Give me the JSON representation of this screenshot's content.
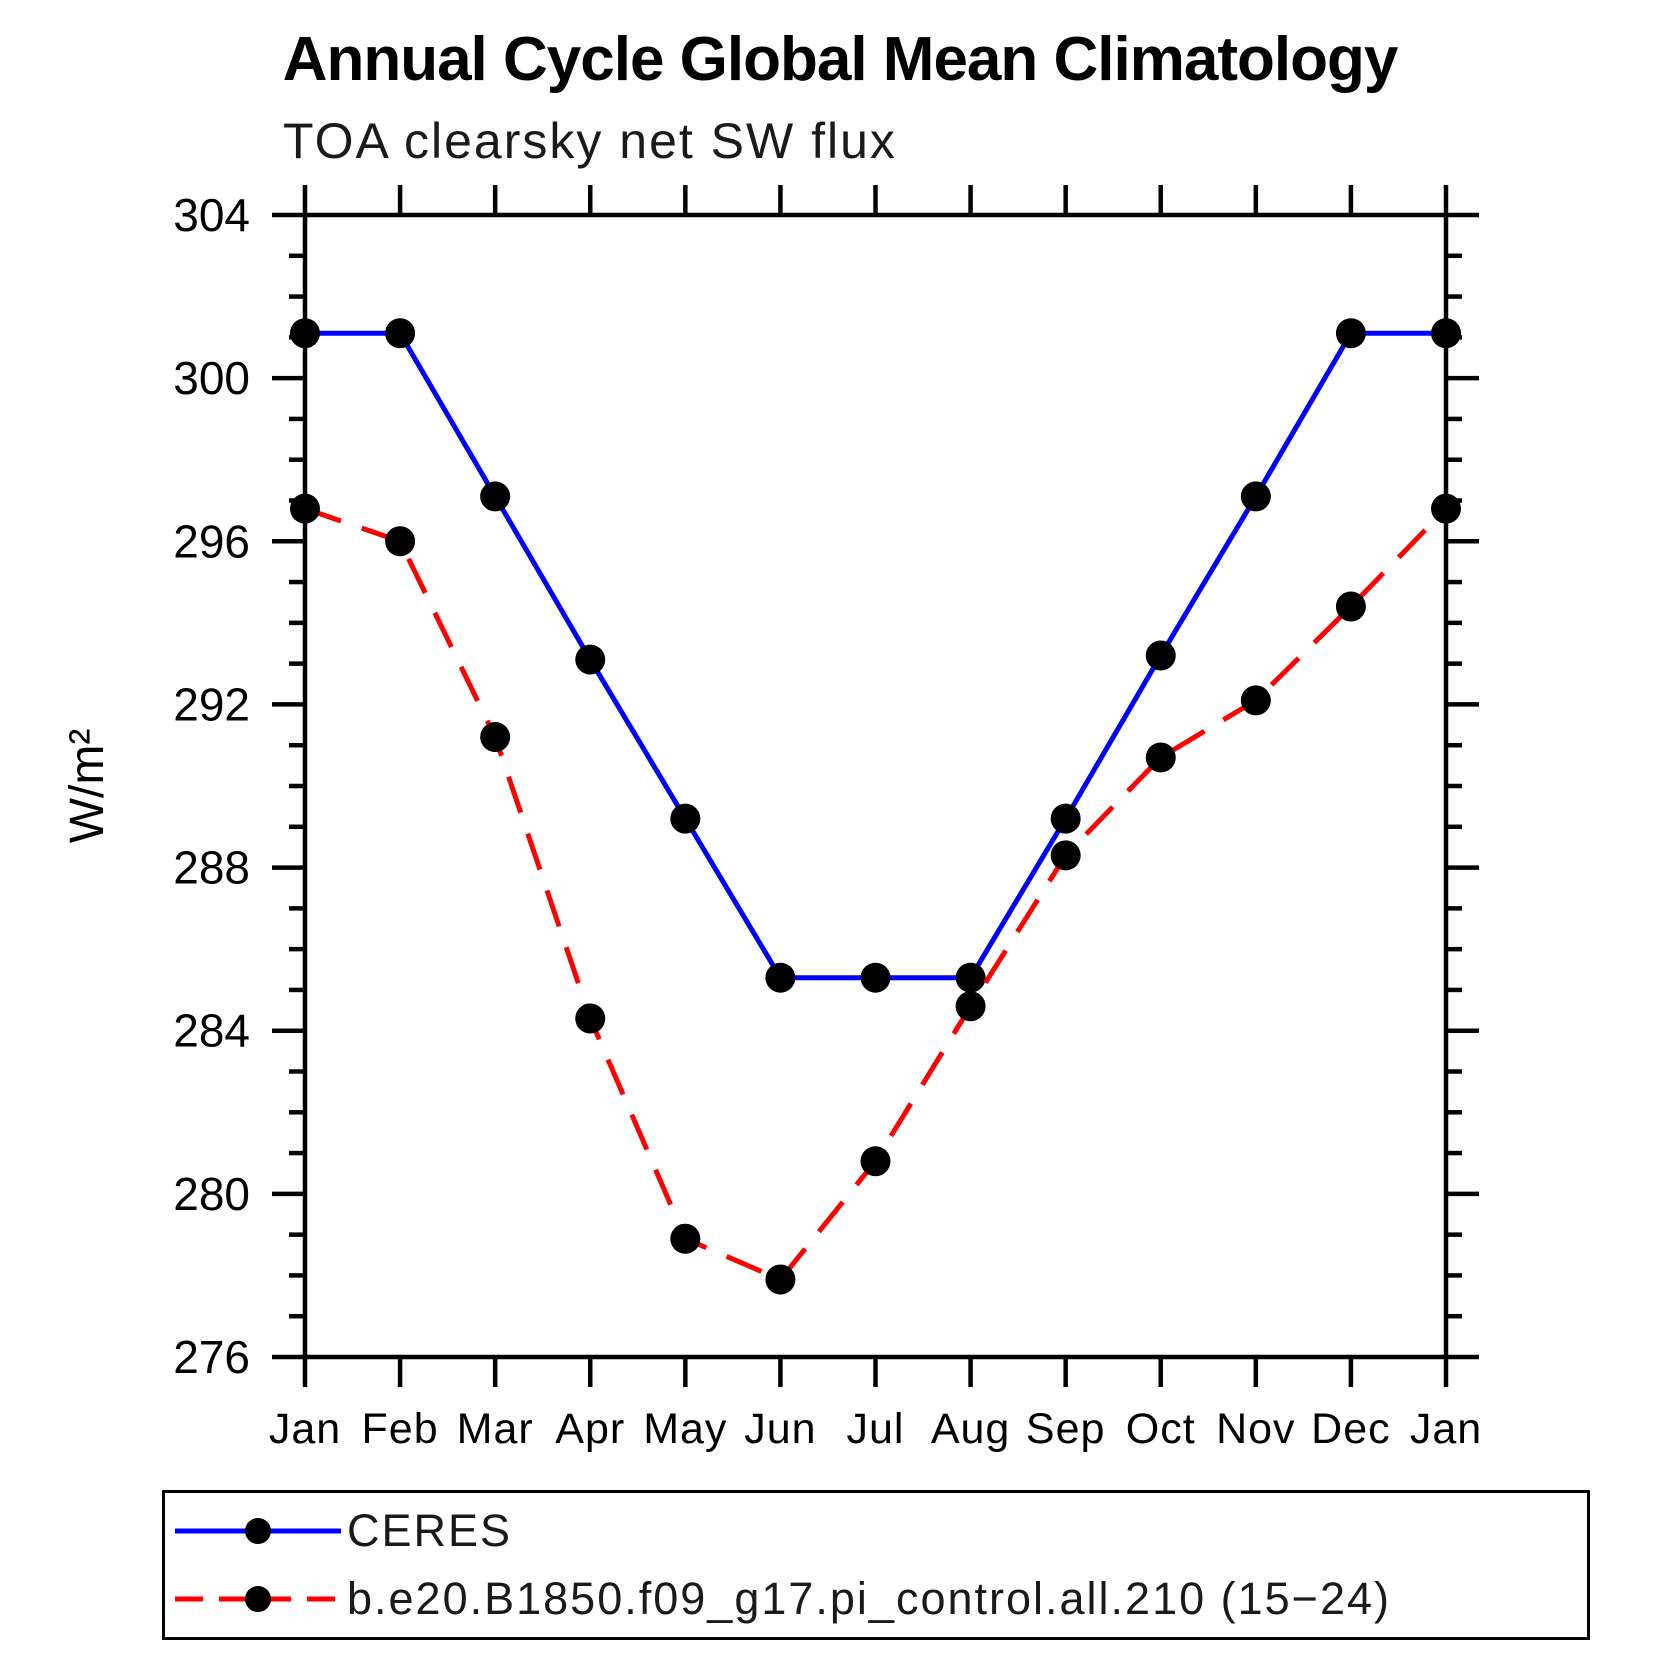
{
  "page": {
    "title": "Annual Cycle Global Mean Climatology",
    "subtitle": "TOA clearsky net SW flux"
  },
  "chart_data": {
    "type": "line",
    "title": "Annual Cycle Global Mean Climatology",
    "subtitle": "TOA clearsky net SW flux",
    "xlabel": "",
    "ylabel": "W/m²",
    "ylim": [
      276,
      304
    ],
    "y_major_step": 4,
    "y_minor_step": 1,
    "grid": false,
    "legend_position": "bottom",
    "axis_color": "#000000",
    "categories": [
      "Jan",
      "Feb",
      "Mar",
      "Apr",
      "May",
      "Jun",
      "Jul",
      "Aug",
      "Sep",
      "Oct",
      "Nov",
      "Dec",
      "Jan"
    ],
    "series": [
      {
        "name": "CERES",
        "color": "#0000ff",
        "line_style": "solid",
        "marker": "circle",
        "marker_color": "#000000",
        "values": [
          301.1,
          301.1,
          297.1,
          293.1,
          289.2,
          285.3,
          285.3,
          285.3,
          289.2,
          293.2,
          297.1,
          301.1,
          301.1
        ]
      },
      {
        "name": "b.e20.B1850.f09_g17.pi_control.all.210 (15−24)",
        "color": "#ff0000",
        "line_style": "dashed",
        "marker": "circle",
        "marker_color": "#000000",
        "values": [
          296.8,
          296.0,
          291.2,
          284.3,
          278.9,
          277.9,
          280.8,
          284.6,
          288.3,
          290.7,
          292.1,
          294.4,
          296.8
        ]
      }
    ]
  }
}
